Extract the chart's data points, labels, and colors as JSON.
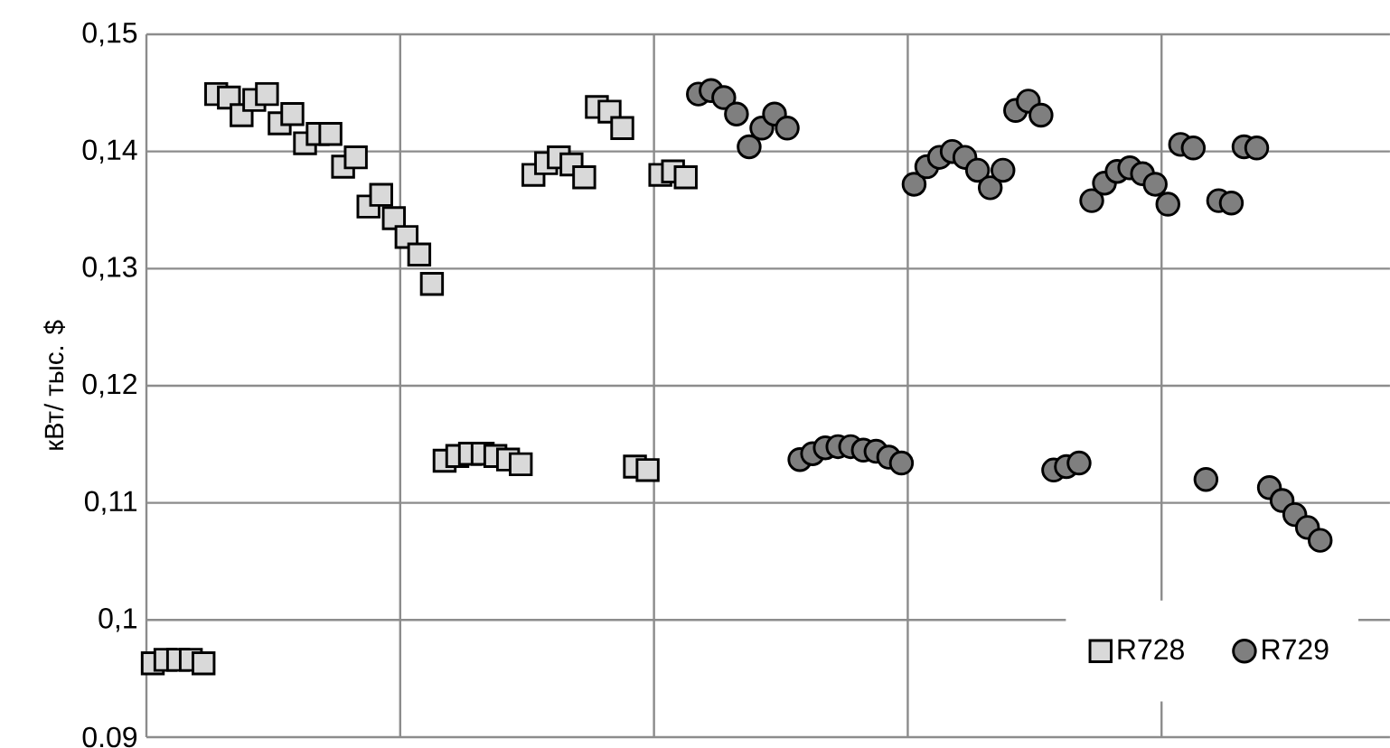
{
  "chart_data": {
    "type": "scatter",
    "ylabel": "кВт/ тыс. $",
    "categories": [
      null,
      null,
      null,
      null,
      null,
      null,
      null,
      null,
      null,
      null,
      null,
      null,
      null,
      null,
      null,
      null,
      null,
      null,
      null,
      null,
      null,
      null,
      null,
      null,
      null,
      null,
      null,
      null,
      null,
      null,
      null,
      null,
      null,
      null,
      null,
      null,
      null,
      null,
      null,
      null,
      null,
      null,
      null,
      null,
      null,
      null,
      null,
      null,
      null,
      null,
      null,
      null,
      null,
      null,
      null,
      null,
      null,
      null,
      null,
      null,
      null,
      null,
      null,
      null,
      null,
      null,
      null,
      null,
      null,
      null,
      null,
      null,
      null,
      null,
      null,
      null,
      null,
      null,
      null,
      null,
      null,
      null,
      null,
      null,
      null,
      null,
      null,
      null,
      null,
      null,
      null,
      null,
      null,
      null,
      null,
      null,
      null,
      null
    ],
    "ylim": [
      0.09,
      0.15
    ],
    "yticks": [
      {
        "value": 0.09,
        "label": "0.09"
      },
      {
        "value": 0.1,
        "label": "0,1"
      },
      {
        "value": 0.11,
        "label": "0,11"
      },
      {
        "value": 0.12,
        "label": "0,12"
      },
      {
        "value": 0.13,
        "label": "0,13"
      },
      {
        "value": 0.14,
        "label": "0,14"
      },
      {
        "value": 0.15,
        "label": "0,15"
      }
    ],
    "tick_labels": "y",
    "grid": true,
    "legend": "bottom right",
    "series": [
      {
        "name": "R728",
        "color": "#d9d9d9",
        "marker": "square",
        "values": [
          0.0963,
          0.0966,
          0.0966,
          0.0966,
          0.0963,
          0.1449,
          0.1446,
          0.1431,
          0.1444,
          0.1449,
          0.1424,
          0.1432,
          0.1407,
          0.1415,
          0.1415,
          0.1387,
          0.1395,
          0.1353,
          0.1363,
          0.1343,
          0.1327,
          0.1312,
          0.1287,
          0.1136,
          0.114,
          0.1142,
          0.1142,
          0.114,
          0.1137,
          0.1133,
          0.138,
          0.139,
          0.1395,
          0.1389,
          0.1378,
          0.1438,
          0.1434,
          0.142,
          0.1131,
          0.1128,
          0.138,
          0.1383,
          0.1378,
          null,
          null,
          null,
          null,
          null,
          null,
          null,
          null,
          null,
          null,
          null,
          null,
          null,
          null,
          null,
          null,
          null,
          null,
          null,
          null,
          null,
          null,
          null,
          null,
          null,
          null,
          null,
          null,
          null,
          null,
          null,
          null,
          null,
          null,
          null,
          null,
          null,
          null,
          null,
          null,
          null,
          null,
          null,
          null,
          null,
          null,
          null,
          null,
          null,
          null,
          null,
          null,
          null,
          null,
          null
        ]
      },
      {
        "name": "R729",
        "color": "#7f7f7f",
        "marker": "circle",
        "values": [
          null,
          null,
          null,
          null,
          null,
          null,
          null,
          null,
          null,
          null,
          null,
          null,
          null,
          null,
          null,
          null,
          null,
          null,
          null,
          null,
          null,
          null,
          null,
          null,
          null,
          null,
          null,
          null,
          null,
          null,
          null,
          null,
          null,
          null,
          null,
          null,
          null,
          null,
          null,
          null,
          null,
          null,
          null,
          0.1449,
          0.1452,
          0.1446,
          0.1432,
          0.1404,
          0.142,
          0.1432,
          0.142,
          0.1137,
          0.1142,
          0.1147,
          0.1148,
          0.1148,
          0.1145,
          0.1144,
          0.1139,
          0.1134,
          0.1372,
          0.1387,
          0.1395,
          0.14,
          0.1395,
          0.1384,
          0.1369,
          0.1384,
          0.1435,
          0.1443,
          0.1431,
          0.1128,
          0.1131,
          0.1134,
          0.1358,
          0.1373,
          0.1383,
          0.1386,
          0.1381,
          0.1372,
          0.1355,
          0.1406,
          0.1403,
          0.112,
          0.1358,
          0.1356,
          0.1404,
          0.1403,
          0.1113,
          0.1102,
          0.109,
          0.1079,
          0.1068,
          null,
          null,
          null,
          null,
          null
        ]
      }
    ]
  }
}
